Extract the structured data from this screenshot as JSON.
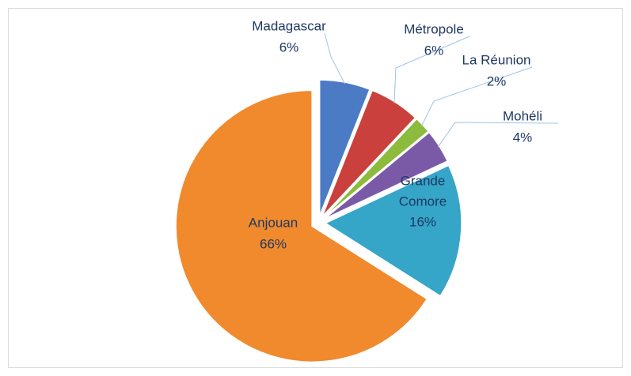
{
  "chart_data": {
    "type": "pie",
    "categories": [
      "Madagascar",
      "Métropole",
      "La Réunion",
      "Mohéli",
      "Grande Comore",
      "Anjouan"
    ],
    "values": [
      6,
      6,
      2,
      4,
      16,
      66
    ],
    "value_labels": [
      "6%",
      "6%",
      "2%",
      "4%",
      "16%",
      "66%"
    ],
    "colors": [
      "#4a7bc4",
      "#c9403c",
      "#8dbb3d",
      "#7a5aa6",
      "#35a5c8",
      "#f08a2c"
    ]
  }
}
